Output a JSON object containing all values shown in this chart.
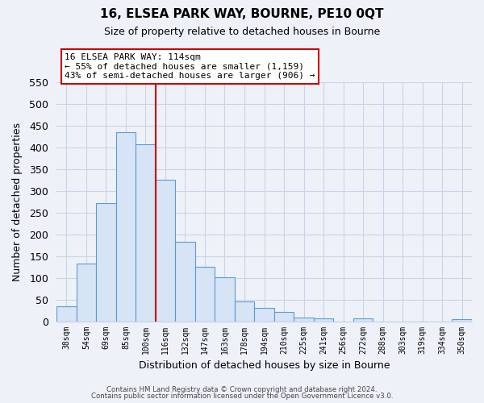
{
  "title": "16, ELSEA PARK WAY, BOURNE, PE10 0QT",
  "subtitle": "Size of property relative to detached houses in Bourne",
  "xlabel": "Distribution of detached houses by size in Bourne",
  "ylabel": "Number of detached properties",
  "bar_labels": [
    "38sqm",
    "54sqm",
    "69sqm",
    "85sqm",
    "100sqm",
    "116sqm",
    "132sqm",
    "147sqm",
    "163sqm",
    "178sqm",
    "194sqm",
    "210sqm",
    "225sqm",
    "241sqm",
    "256sqm",
    "272sqm",
    "288sqm",
    "303sqm",
    "319sqm",
    "334sqm",
    "350sqm"
  ],
  "bar_heights": [
    35,
    133,
    272,
    435,
    407,
    325,
    182,
    126,
    102,
    46,
    30,
    21,
    8,
    7,
    0,
    7,
    0,
    0,
    0,
    0,
    5
  ],
  "bar_color": "#d6e4f5",
  "bar_edge_color": "#5b9bd5",
  "vline_x": 5,
  "vline_color": "#cc0000",
  "annotation_title": "16 ELSEA PARK WAY: 114sqm",
  "annotation_line1": "← 55% of detached houses are smaller (1,159)",
  "annotation_line2": "43% of semi-detached houses are larger (906) →",
  "annotation_box_edge": "#cc0000",
  "annotation_box_face": "#ffffff",
  "ylim": [
    0,
    550
  ],
  "yticks": [
    0,
    50,
    100,
    150,
    200,
    250,
    300,
    350,
    400,
    450,
    500,
    550
  ],
  "footer1": "Contains HM Land Registry data © Crown copyright and database right 2024.",
  "footer2": "Contains public sector information licensed under the Open Government Licence v3.0.",
  "bg_color": "#eef2f8",
  "plot_bg_color": "#eef2f8",
  "grid_color": "#c8d4e8"
}
